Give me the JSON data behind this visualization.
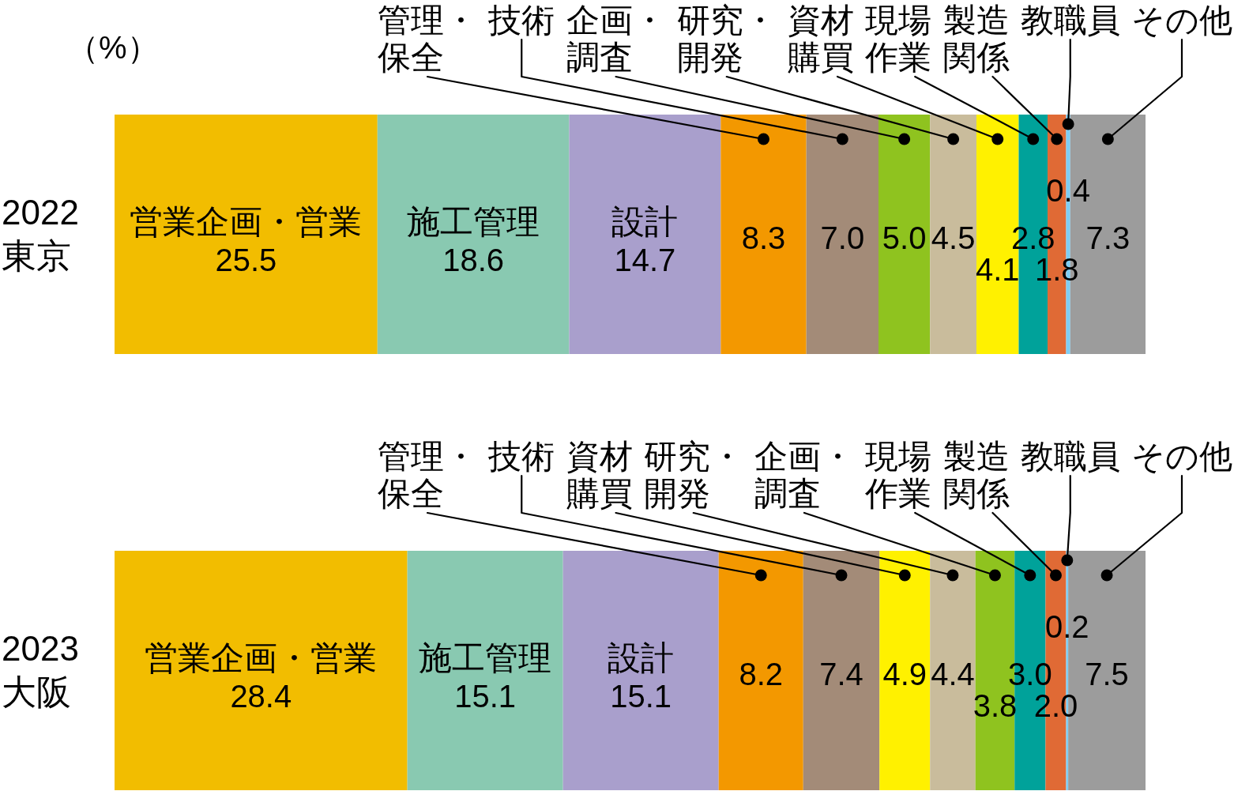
{
  "chart_data": [
    {
      "type": "bar",
      "orientation": "horizontal",
      "stacked": true,
      "categories": [
        "2022\n東京"
      ],
      "xlim": [
        0,
        100
      ],
      "tick_labels": "y",
      "annotations": [
        "（%）"
      ],
      "series": [
        {
          "name": "営業企画・営業",
          "color": "#f2bd00",
          "values": [
            25.5
          ],
          "value_labels": [
            "25.5"
          ]
        },
        {
          "name": "施工管理",
          "color": "#89c9b1",
          "values": [
            18.6
          ],
          "value_labels": [
            "18.6"
          ]
        },
        {
          "name": "設計",
          "color": "#a99fcc",
          "values": [
            14.7
          ],
          "value_labels": [
            "14.7"
          ]
        },
        {
          "name": "管理・保全",
          "color": "#f39800",
          "values": [
            8.3
          ],
          "value_labels": [
            "8.3"
          ]
        },
        {
          "name": "技術",
          "color": "#a38b78",
          "values": [
            7.0
          ],
          "value_labels": [
            "7.0"
          ]
        },
        {
          "name": "企画・調査",
          "color": "#8fc31f",
          "values": [
            5.0
          ],
          "value_labels": [
            "5.0"
          ]
        },
        {
          "name": "研究・開発",
          "color": "#c9bc9c",
          "values": [
            4.5
          ],
          "value_labels": [
            "4.5"
          ]
        },
        {
          "name": "資材購買",
          "color": "#fff100",
          "values": [
            4.1
          ],
          "value_labels": [
            "4.1"
          ]
        },
        {
          "name": "現場作業",
          "color": "#00a29a",
          "values": [
            2.8
          ],
          "value_labels": [
            "2.8"
          ]
        },
        {
          "name": "製造関係",
          "color": "#e06a35",
          "values": [
            1.8
          ],
          "value_labels": [
            "1.8"
          ]
        },
        {
          "name": "教職員",
          "color": "#7ecef4",
          "values": [
            0.4
          ],
          "value_labels": [
            "0.4"
          ]
        },
        {
          "name": "その他",
          "color": "#9c9c9c",
          "values": [
            7.3
          ],
          "value_labels": [
            "7.3"
          ]
        }
      ]
    },
    {
      "type": "bar",
      "orientation": "horizontal",
      "stacked": true,
      "categories": [
        "2023\n大阪"
      ],
      "xlim": [
        0,
        100
      ],
      "tick_labels": "y",
      "series": [
        {
          "name": "営業企画・営業",
          "color": "#f2bd00",
          "values": [
            28.4
          ],
          "value_labels": [
            "28.4"
          ]
        },
        {
          "name": "施工管理",
          "color": "#89c9b1",
          "values": [
            15.1
          ],
          "value_labels": [
            "15.1"
          ]
        },
        {
          "name": "設計",
          "color": "#a99fcc",
          "values": [
            15.1
          ],
          "value_labels": [
            "15.1"
          ]
        },
        {
          "name": "管理・保全",
          "color": "#f39800",
          "values": [
            8.2
          ],
          "value_labels": [
            "8.2"
          ]
        },
        {
          "name": "技術",
          "color": "#a38b78",
          "values": [
            7.4
          ],
          "value_labels": [
            "7.4"
          ]
        },
        {
          "name": "資材購買",
          "color": "#fff100",
          "values": [
            4.9
          ],
          "value_labels": [
            "4.9"
          ]
        },
        {
          "name": "研究・開発",
          "color": "#c9bc9c",
          "values": [
            4.4
          ],
          "value_labels": [
            "4.4"
          ]
        },
        {
          "name": "企画・調査",
          "color": "#8fc31f",
          "values": [
            3.8
          ],
          "value_labels": [
            "3.8"
          ]
        },
        {
          "name": "現場作業",
          "color": "#00a29a",
          "values": [
            3.0
          ],
          "value_labels": [
            "3.0"
          ]
        },
        {
          "name": "製造関係",
          "color": "#e06a35",
          "values": [
            2.0
          ],
          "value_labels": [
            "2.0"
          ]
        },
        {
          "name": "教職員",
          "color": "#7ecef4",
          "values": [
            0.2
          ],
          "value_labels": [
            "0.2"
          ]
        },
        {
          "name": "その他",
          "color": "#9c9c9c",
          "values": [
            7.5
          ],
          "value_labels": [
            "7.5"
          ]
        }
      ]
    }
  ]
}
